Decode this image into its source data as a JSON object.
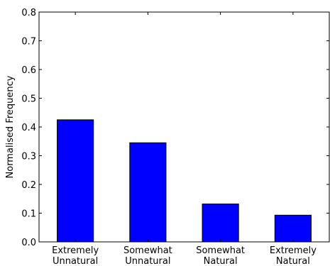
{
  "chart_data": {
    "type": "bar",
    "categories": [
      [
        "Extremely",
        "Unnatural"
      ],
      [
        "Somewhat",
        "Unnatural"
      ],
      [
        "Somewhat",
        "Natural"
      ],
      [
        "Extremely",
        "Natural"
      ]
    ],
    "values": [
      0.425,
      0.345,
      0.132,
      0.093
    ],
    "xlabel": "",
    "ylabel": "Normalised Frequency",
    "ylim": [
      0,
      0.8
    ],
    "yticks": [
      "0.0",
      "0.1",
      "0.2",
      "0.3",
      "0.4",
      "0.5",
      "0.6",
      "0.7",
      "0.8"
    ],
    "grid": false,
    "bar_color": "#0000ff",
    "edge_color": "#000000"
  }
}
